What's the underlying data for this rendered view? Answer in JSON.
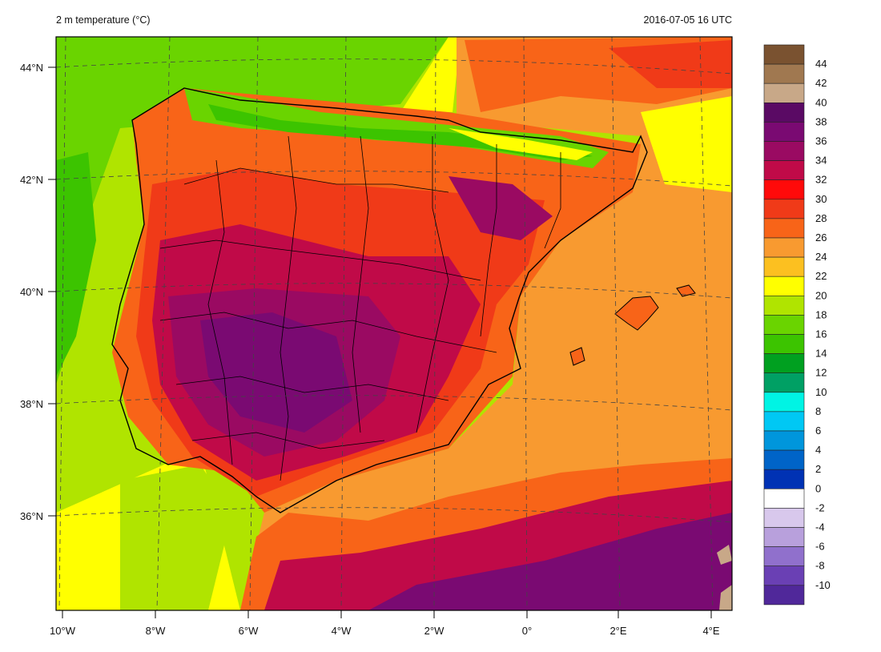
{
  "header": {
    "title": "2 m temperature (°C)",
    "valid_time": "2016-07-05 16 UTC"
  },
  "axes": {
    "lat_labels": [
      "44°N",
      "42°N",
      "40°N",
      "38°N",
      "36°N"
    ],
    "lon_labels": [
      "10°W",
      "8°W",
      "6°W",
      "4°W",
      "2°W",
      "0°",
      "2°E",
      "4°E"
    ]
  },
  "colorbar": {
    "labels": [
      "44",
      "42",
      "40",
      "38",
      "36",
      "34",
      "32",
      "30",
      "28",
      "26",
      "24",
      "22",
      "20",
      "18",
      "16",
      "14",
      "12",
      "10",
      "8",
      "6",
      "4",
      "2",
      "0",
      "-2",
      "-4",
      "-6",
      "-8",
      "-10"
    ],
    "colors": [
      "#7a5230",
      "#a07850",
      "#c8a888",
      "#5a0a64",
      "#7a0a72",
      "#9a0a62",
      "#c00a48",
      "#ff0a0a",
      "#f03a18",
      "#f86418",
      "#f89a30",
      "#fcc020",
      "#ffff00",
      "#b0e400",
      "#6ad400",
      "#3cc400",
      "#00a020",
      "#00a064",
      "#00f4e4",
      "#00c8f4",
      "#0096dc",
      "#0064c8",
      "#0032b4",
      "#ffffff",
      "#d8c8ec",
      "#b8a0dc",
      "#9070cc",
      "#6a40b4",
      "#50289a"
    ]
  },
  "regions": {
    "ocean_atlantic": "#b0e400",
    "ocean_med": "#f89a30"
  }
}
